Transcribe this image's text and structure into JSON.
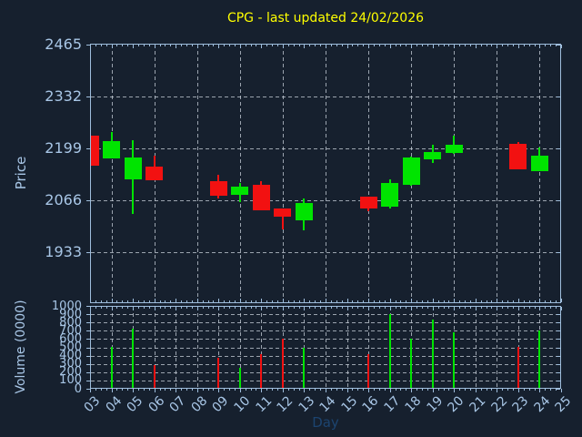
{
  "title": {
    "text": "CPG - last updated 24/02/2026"
  },
  "axes": {
    "price_label": "Price",
    "volume_label": "Volume (0000)",
    "x_label": "Day"
  },
  "colors": {
    "background": "#16202e",
    "spine": "#9fbedd",
    "tick_label": "#a8c6e6",
    "grid": "rgba(200,208,218,0.75)",
    "title": "#ffff00",
    "x_axis_label": "#1c4470",
    "up": "#00e400",
    "down": "#f21111"
  },
  "chart_data": {
    "type": "candlestick",
    "title": "CPG - last updated 24/02/2026",
    "xlabel": "Day",
    "price_ylabel": "Price",
    "volume_ylabel": "Volume (0000)",
    "grid": true,
    "price_axis_ticks": [
      2465,
      2332,
      2199,
      2066,
      1933
    ],
    "price_axis_range": [
      1803,
      2468
    ],
    "volume_axis_ticks": [
      1000,
      900,
      800,
      700,
      600,
      500,
      400,
      300,
      200,
      100,
      0
    ],
    "volume_axis_range": [
      0,
      1000
    ],
    "day_ticks": [
      "03",
      "04",
      "05",
      "06",
      "07",
      "08",
      "09",
      "10",
      "11",
      "12",
      "13",
      "14",
      "15",
      "16",
      "17",
      "18",
      "19",
      "20",
      "21",
      "22",
      "23",
      "24",
      "25"
    ],
    "candles": [
      {
        "day": "03",
        "open": 2232,
        "high": 2232,
        "low": 2156,
        "close": 2156,
        "volume": null,
        "direction": "down"
      },
      {
        "day": "04",
        "open": 2174,
        "high": 2242,
        "low": 2174,
        "close": 2219,
        "volume": 505,
        "direction": "up"
      },
      {
        "day": "05",
        "open": 2120,
        "high": 2221,
        "low": 2032,
        "close": 2176,
        "volume": 720,
        "direction": "up"
      },
      {
        "day": "06",
        "open": 2154,
        "high": 2182,
        "low": 2119,
        "close": 2119,
        "volume": 285,
        "direction": "down"
      },
      {
        "day": "09",
        "open": 2116,
        "high": 2132,
        "low": 2071,
        "close": 2078,
        "volume": 375,
        "direction": "down"
      },
      {
        "day": "10",
        "open": 2080,
        "high": 2112,
        "low": 2061,
        "close": 2102,
        "volume": 255,
        "direction": "up"
      },
      {
        "day": "11",
        "open": 2106,
        "high": 2116,
        "low": 2040,
        "close": 2040,
        "volume": 415,
        "direction": "down"
      },
      {
        "day": "12",
        "open": 2046,
        "high": 2046,
        "low": 1993,
        "close": 2025,
        "volume": 600,
        "direction": "down"
      },
      {
        "day": "13",
        "open": 2016,
        "high": 2071,
        "low": 1990,
        "close": 2059,
        "volume": 500,
        "direction": "up"
      },
      {
        "day": "16",
        "open": 2076,
        "high": 2076,
        "low": 2039,
        "close": 2045,
        "volume": 420,
        "direction": "down"
      },
      {
        "day": "17",
        "open": 2050,
        "high": 2120,
        "low": 2045,
        "close": 2110,
        "volume": 905,
        "direction": "up"
      },
      {
        "day": "18",
        "open": 2107,
        "high": 2178,
        "low": 2103,
        "close": 2176,
        "volume": 605,
        "direction": "up"
      },
      {
        "day": "19",
        "open": 2172,
        "high": 2209,
        "low": 2162,
        "close": 2190,
        "volume": 830,
        "direction": "up"
      },
      {
        "day": "20",
        "open": 2189,
        "high": 2232,
        "low": 2185,
        "close": 2209,
        "volume": 685,
        "direction": "up"
      },
      {
        "day": "23",
        "open": 2211,
        "high": 2215,
        "low": 2145,
        "close": 2147,
        "volume": 505,
        "direction": "down"
      },
      {
        "day": "24",
        "open": 2142,
        "high": 2201,
        "low": 2142,
        "close": 2181,
        "volume": 705,
        "direction": "up"
      }
    ]
  }
}
